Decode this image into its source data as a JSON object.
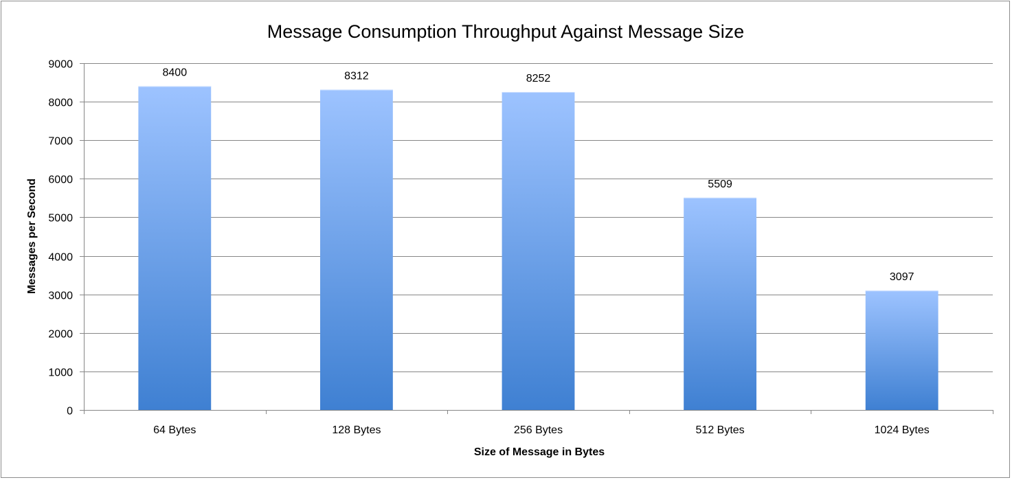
{
  "chart_data": {
    "type": "bar",
    "title": "Message Consumption Throughput Against Message Size",
    "xlabel": "Size of Message in Bytes",
    "ylabel": "Messages per Second",
    "categories": [
      "64 Bytes",
      "128 Bytes",
      "256 Bytes",
      "512 Bytes",
      "1024 Bytes"
    ],
    "series": [
      {
        "name": "Messages per Second",
        "values": [
          8400,
          8312,
          8252,
          5509,
          3097
        ]
      }
    ],
    "ylim": [
      0,
      9000
    ],
    "ytick_step": 1000,
    "yticks": [
      "0",
      "1000",
      "2000",
      "3000",
      "4000",
      "5000",
      "6000",
      "7000",
      "8000",
      "9000"
    ],
    "grid": true,
    "legend": "none",
    "colors": {
      "bar_top": "#9DC3FF",
      "bar_bottom": "#3F80D2",
      "grid": "#868686",
      "border": "#8c8c8c"
    }
  }
}
